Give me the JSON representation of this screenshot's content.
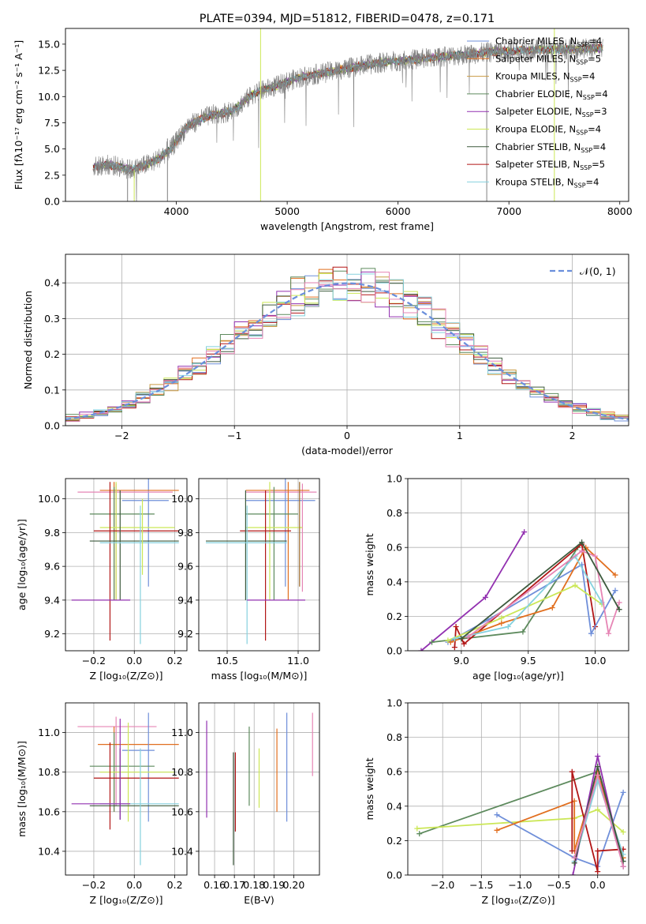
{
  "chart_data": [
    {
      "id": "spectrum",
      "type": "line",
      "title": "PLATE=0394, MJD=51812, FIBERID=0478, z=0.171",
      "xlabel": "wavelength [Angstrom, rest frame]",
      "ylabel": "Flux [fλ10⁻¹⁷ erg cm⁻² s⁻¹ A⁻¹]",
      "xlim": [
        3000,
        8080
      ],
      "ylim": [
        0,
        16.5
      ],
      "xticks": [
        4000,
        5000,
        6000,
        7000,
        8000
      ],
      "yticks": [
        0.0,
        2.5,
        5.0,
        7.5,
        10.0,
        12.5,
        15.0
      ],
      "grid": false,
      "legend_position": "top-right",
      "data_color": "#808080",
      "continuum_x": [
        3250,
        3400,
        3600,
        3800,
        3950,
        4100,
        4300,
        4500,
        4700,
        4900,
        5100,
        5300,
        5500,
        5700,
        5900,
        6100,
        6300,
        6500,
        6700,
        6900,
        7100,
        7300,
        7500,
        7700,
        7850
      ],
      "continuum_y": [
        3.3,
        3.5,
        3.0,
        3.8,
        5.0,
        7.2,
        8.2,
        8.6,
        10.3,
        11.0,
        11.8,
        12.2,
        12.6,
        13.0,
        13.3,
        13.5,
        13.7,
        13.9,
        14.1,
        14.3,
        14.4,
        14.5,
        14.5,
        14.6,
        14.6
      ],
      "series": [
        {
          "name": "Chabrier MILES, N",
          "sub": "SSP",
          "suffix": "=4",
          "color": "#6f8fd9"
        },
        {
          "name": "Salpeter MILES, N",
          "sub": "SSP",
          "suffix": "=5",
          "color": "#e16f1f"
        },
        {
          "name": "Kroupa MILES, N",
          "sub": "SSP",
          "suffix": "=4",
          "color": "#c99a43"
        },
        {
          "name": "Chabrier ELODIE, N",
          "sub": "SSP",
          "suffix": "=4",
          "color": "#5d8a5d"
        },
        {
          "name": "Salpeter ELODIE, N",
          "sub": "SSP",
          "suffix": "=3",
          "color": "#9230b0"
        },
        {
          "name": "Kroupa ELODIE, N",
          "sub": "SSP",
          "suffix": "=4",
          "color": "#cbe756"
        },
        {
          "name": "Chabrier STELIB, N",
          "sub": "SSP",
          "suffix": "=4",
          "color": "#3d5a3d"
        },
        {
          "name": "Salpeter STELIB, N",
          "sub": "SSP",
          "suffix": "=5",
          "color": "#b21616"
        },
        {
          "name": "Kroupa STELIB, N",
          "sub": "SSP",
          "suffix": "=4",
          "color": "#85d1de"
        }
      ]
    },
    {
      "id": "residuals",
      "type": "line",
      "xlabel": "(data-model)/error",
      "ylabel": "Normed distribution",
      "xlim": [
        -2.5,
        2.5
      ],
      "ylim": [
        0,
        0.48
      ],
      "xticks": [
        -2,
        -1,
        0,
        1,
        2
      ],
      "yticks": [
        0.0,
        0.1,
        0.2,
        0.3,
        0.4
      ],
      "grid": true,
      "legend_position": "top-right",
      "gauss_label": "𝒩(0, 1)",
      "gauss_color": "#6a8fdc",
      "hist_colors": [
        "#6f8fd9",
        "#e16f1f",
        "#c99a43",
        "#5d8a5d",
        "#9230b0",
        "#cbe756",
        "#3d5a3d",
        "#b21616",
        "#85d1de",
        "#e685b5"
      ]
    },
    {
      "id": "age-z",
      "type": "scatter",
      "xlabel": "Z [log₁₀(Z/Z⊙)]",
      "ylabel": "age  [log₁₀(age/yr)]",
      "xlim": [
        -0.34,
        0.26
      ],
      "ylim": [
        9.1,
        10.12
      ],
      "xticks": [
        -0.2,
        0.0,
        0.2
      ],
      "yticks": [
        9.2,
        9.4,
        9.6,
        9.8,
        10.0
      ],
      "grid": true,
      "points": [
        {
          "x": 0.07,
          "y": 9.99,
          "xlo": -0.06,
          "xhi": 0.17,
          "ylo": 9.48,
          "yhi": 10.12,
          "color": "#6f8fd9"
        },
        {
          "x": -0.09,
          "y": 10.04,
          "xlo": -0.28,
          "xhi": 0.19,
          "ylo": 9.4,
          "yhi": 10.09,
          "color": "#e685b5"
        },
        {
          "x": -0.1,
          "y": 10.05,
          "xlo": -0.17,
          "xhi": 0.22,
          "ylo": 9.4,
          "yhi": 10.1,
          "color": "#e16f1f"
        },
        {
          "x": -0.1,
          "y": 9.91,
          "xlo": -0.22,
          "xhi": 0.1,
          "ylo": 9.4,
          "yhi": 10.07,
          "color": "#5d8a5d"
        },
        {
          "x": -0.09,
          "y": 9.83,
          "xlo": -0.17,
          "xhi": 0.2,
          "ylo": 9.4,
          "yhi": 10.1,
          "color": "#cbe756"
        },
        {
          "x": -0.12,
          "y": 9.81,
          "xlo": -0.2,
          "xhi": 0.22,
          "ylo": 9.16,
          "yhi": 10.1,
          "color": "#b21616"
        },
        {
          "x": -0.07,
          "y": 9.75,
          "xlo": -0.22,
          "xhi": 0.22,
          "ylo": 9.4,
          "yhi": 10.05,
          "color": "#3d5a3d"
        },
        {
          "x": 0.03,
          "y": 9.74,
          "xlo": -0.17,
          "xhi": 0.22,
          "ylo": 9.14,
          "yhi": 9.96,
          "color": "#85d1de"
        },
        {
          "x": -0.07,
          "y": 9.4,
          "xlo": -0.31,
          "xhi": -0.02,
          "ylo": 9.4,
          "yhi": 9.4,
          "color": "#9230b0"
        },
        {
          "x": 0.04,
          "y": 9.83,
          "xlo": 0.04,
          "xhi": 0.04,
          "ylo": 9.55,
          "yhi": 10.0,
          "color": "#cbe756"
        }
      ]
    },
    {
      "id": "age-mass",
      "type": "scatter",
      "xlabel": "mass [log₁₀(M/M⊙)]",
      "ylabel": "",
      "xlim": [
        10.3,
        11.15
      ],
      "ylim": [
        9.1,
        10.12
      ],
      "xticks": [
        10.5,
        11.0
      ],
      "yticks": [
        9.2,
        9.4,
        9.6,
        9.8,
        10.0
      ],
      "grid": true,
      "points": [
        {
          "x": 10.91,
          "y": 9.99,
          "xlo": 10.63,
          "xhi": 11.12,
          "ylo": 9.48,
          "yhi": 10.12,
          "color": "#6f8fd9"
        },
        {
          "x": 11.03,
          "y": 10.04,
          "xlo": 10.63,
          "xhi": 11.13,
          "ylo": 9.45,
          "yhi": 10.09,
          "color": "#e685b5"
        },
        {
          "x": 10.93,
          "y": 10.05,
          "xlo": 10.63,
          "xhi": 11.08,
          "ylo": 9.4,
          "yhi": 10.1,
          "color": "#e16f1f"
        },
        {
          "x": 10.83,
          "y": 9.91,
          "xlo": 10.63,
          "xhi": 11.0,
          "ylo": 9.4,
          "yhi": 10.07,
          "color": "#5d8a5d"
        },
        {
          "x": 10.8,
          "y": 9.83,
          "xlo": 10.63,
          "xhi": 11.03,
          "ylo": 9.4,
          "yhi": 10.1,
          "color": "#cbe756"
        },
        {
          "x": 10.77,
          "y": 9.81,
          "xlo": 10.59,
          "xhi": 10.95,
          "ylo": 9.16,
          "yhi": 10.05,
          "color": "#b21616"
        },
        {
          "x": 10.63,
          "y": 9.75,
          "xlo": 10.35,
          "xhi": 10.92,
          "ylo": 9.4,
          "yhi": 10.05,
          "color": "#3d5a3d"
        },
        {
          "x": 10.64,
          "y": 9.74,
          "xlo": 10.35,
          "xhi": 10.92,
          "ylo": 9.14,
          "yhi": 9.96,
          "color": "#85d1de"
        },
        {
          "x": 10.64,
          "y": 9.4,
          "xlo": 10.64,
          "xhi": 11.05,
          "ylo": 9.4,
          "yhi": 9.4,
          "color": "#9230b0"
        },
        {
          "x": 11.01,
          "y": 9.8,
          "xlo": 11.01,
          "xhi": 11.01,
          "ylo": 9.48,
          "yhi": 10.1,
          "color": "#9e6a2a"
        }
      ]
    },
    {
      "id": "weight-age",
      "type": "line",
      "xlabel": "age  [log₁₀(age/yr)]",
      "ylabel": "mass weight",
      "xlim": [
        8.6,
        10.25
      ],
      "ylim": [
        0,
        1
      ],
      "xticks": [
        9.0,
        9.5,
        10.0
      ],
      "yticks": [
        0.0,
        0.2,
        0.4,
        0.6,
        0.8,
        1.0
      ],
      "grid": true,
      "series": [
        {
          "color": "#9230b0",
          "x": [
            8.7,
            9.18,
            9.47
          ],
          "y": [
            0.0,
            0.31,
            0.69
          ]
        },
        {
          "color": "#5d8a5d",
          "x": [
            8.78,
            9.46,
            9.87
          ],
          "y": [
            0.05,
            0.11,
            0.6
          ]
        },
        {
          "color": "#b21616",
          "x": [
            8.95,
            8.96,
            9.02,
            9.9,
            10.0
          ],
          "y": [
            0.02,
            0.14,
            0.04,
            0.62,
            0.14
          ]
        },
        {
          "color": "#6f8fd9",
          "x": [
            8.9,
            9.2,
            9.9,
            9.97,
            10.15
          ],
          "y": [
            0.05,
            0.18,
            0.5,
            0.1,
            0.35
          ]
        },
        {
          "color": "#e16f1f",
          "x": [
            8.92,
            9.3,
            9.68,
            9.93,
            10.15
          ],
          "y": [
            0.05,
            0.16,
            0.25,
            0.6,
            0.44
          ]
        },
        {
          "color": "#cbe756",
          "x": [
            8.9,
            9.3,
            9.85,
            10.05
          ],
          "y": [
            0.06,
            0.19,
            0.38,
            0.27
          ]
        },
        {
          "color": "#85d1de",
          "x": [
            8.95,
            9.35,
            9.85,
            10.05
          ],
          "y": [
            0.07,
            0.14,
            0.55,
            0.28
          ]
        },
        {
          "color": "#e685b5",
          "x": [
            9.05,
            9.9,
            10.0,
            10.1,
            10.18
          ],
          "y": [
            0.08,
            0.58,
            0.55,
            0.1,
            0.28
          ]
        },
        {
          "color": "#3d5a3d",
          "x": [
            9.0,
            9.9,
            10.18
          ],
          "y": [
            0.07,
            0.63,
            0.24
          ]
        }
      ]
    },
    {
      "id": "mass-z",
      "type": "scatter",
      "xlabel": "Z [log₁₀(Z/Z⊙)]",
      "ylabel": "mass [log₁₀(M/M⊙)]",
      "xlim": [
        -0.34,
        0.26
      ],
      "ylim": [
        10.28,
        11.15
      ],
      "xticks": [
        -0.2,
        0.0,
        0.2
      ],
      "yticks": [
        10.4,
        10.6,
        10.8,
        11.0
      ],
      "grid": true,
      "points": [
        {
          "x": -0.09,
          "y": 11.03,
          "xlo": -0.28,
          "xhi": 0.11,
          "ylo": 10.63,
          "yhi": 11.08,
          "color": "#e685b5"
        },
        {
          "x": -0.1,
          "y": 10.94,
          "xlo": -0.18,
          "xhi": 0.22,
          "ylo": 10.6,
          "yhi": 11.03,
          "color": "#e16f1f"
        },
        {
          "x": 0.07,
          "y": 10.91,
          "xlo": -0.06,
          "xhi": 0.1,
          "ylo": 10.55,
          "yhi": 11.1,
          "color": "#6f8fd9"
        },
        {
          "x": -0.1,
          "y": 10.83,
          "xlo": -0.22,
          "xhi": 0.1,
          "ylo": 10.6,
          "yhi": 11.0,
          "color": "#5d8a5d"
        },
        {
          "x": -0.03,
          "y": 10.8,
          "xlo": -0.17,
          "xhi": 0.2,
          "ylo": 10.55,
          "yhi": 11.05,
          "color": "#cbe756"
        },
        {
          "x": -0.12,
          "y": 10.77,
          "xlo": -0.2,
          "xhi": 0.22,
          "ylo": 10.51,
          "yhi": 10.95,
          "color": "#b21616"
        },
        {
          "x": -0.07,
          "y": 10.63,
          "xlo": -0.22,
          "xhi": 0.22,
          "ylo": 10.56,
          "yhi": 10.92,
          "color": "#3d5a3d"
        },
        {
          "x": 0.03,
          "y": 10.64,
          "xlo": -0.17,
          "xhi": 0.22,
          "ylo": 10.33,
          "yhi": 10.92,
          "color": "#85d1de"
        },
        {
          "x": -0.07,
          "y": 10.64,
          "xlo": -0.31,
          "xhi": -0.02,
          "ylo": 10.56,
          "yhi": 11.07,
          "color": "#9230b0"
        }
      ]
    },
    {
      "id": "mass-ebv",
      "type": "scatter",
      "xlabel": "E(B-V)",
      "ylabel": "",
      "xlim": [
        0.152,
        0.213
      ],
      "ylim": [
        10.28,
        11.15
      ],
      "xticks": [
        0.16,
        0.17,
        0.18,
        0.19,
        0.2
      ],
      "yticks": [
        10.4,
        10.6,
        10.8,
        11.0
      ],
      "grid": true,
      "bars": [
        {
          "x": 0.156,
          "ylo": 10.57,
          "yhi": 11.06,
          "color": "#9230b0"
        },
        {
          "x": 0.1695,
          "ylo": 10.33,
          "yhi": 10.9,
          "color": "#3d5a3d"
        },
        {
          "x": 0.1705,
          "ylo": 10.5,
          "yhi": 10.87,
          "color": "#85d1de"
        },
        {
          "x": 0.1705,
          "ylo": 10.5,
          "yhi": 10.9,
          "color": "#b21616"
        },
        {
          "x": 0.1775,
          "ylo": 10.63,
          "yhi": 11.03,
          "color": "#5d8a5d"
        },
        {
          "x": 0.1825,
          "ylo": 10.62,
          "yhi": 10.92,
          "color": "#cbe756"
        },
        {
          "x": 0.1915,
          "ylo": 10.6,
          "yhi": 11.02,
          "color": "#e16f1f"
        },
        {
          "x": 0.1965,
          "ylo": 10.55,
          "yhi": 11.1,
          "color": "#6f8fd9"
        },
        {
          "x": 0.2095,
          "ylo": 10.78,
          "yhi": 11.1,
          "color": "#e685b5"
        }
      ]
    },
    {
      "id": "weight-z",
      "type": "line",
      "xlabel": "Z [log₁₀(Z/Z⊙)]",
      "ylabel": "mass weight",
      "xlim": [
        -2.45,
        0.4
      ],
      "ylim": [
        0,
        1
      ],
      "xticks": [
        -2.0,
        -1.5,
        -1.0,
        -0.5,
        0.0
      ],
      "yticks": [
        0.0,
        0.2,
        0.4,
        0.6,
        0.8,
        1.0
      ],
      "grid": true,
      "series": [
        {
          "color": "#5d8a5d",
          "x": [
            -2.3,
            0.0,
            0.33
          ],
          "y": [
            0.24,
            0.6,
            0.05
          ]
        },
        {
          "color": "#cbe756",
          "x": [
            -2.33,
            -0.3,
            0.0,
            0.33
          ],
          "y": [
            0.27,
            0.33,
            0.38,
            0.25
          ]
        },
        {
          "color": "#6f8fd9",
          "x": [
            -1.3,
            -0.3,
            0.0,
            0.33
          ],
          "y": [
            0.35,
            0.1,
            0.05,
            0.48
          ]
        },
        {
          "color": "#e16f1f",
          "x": [
            -1.3,
            -0.3,
            -0.3,
            0.0,
            0.33
          ],
          "y": [
            0.26,
            0.43,
            0.14,
            0.6,
            0.1
          ]
        },
        {
          "color": "#b21616",
          "x": [
            -0.33,
            -0.33,
            0.0,
            0.0,
            0.33
          ],
          "y": [
            0.14,
            0.6,
            0.02,
            0.14,
            0.15
          ]
        },
        {
          "color": "#9230b0",
          "x": [
            -0.32,
            0.0,
            0.33
          ],
          "y": [
            0.0,
            0.69,
            0.05
          ]
        },
        {
          "color": "#85d1de",
          "x": [
            -0.3,
            0.0,
            0.33
          ],
          "y": [
            0.08,
            0.55,
            0.12
          ]
        },
        {
          "color": "#3d5a3d",
          "x": [
            -0.3,
            0.0,
            0.33
          ],
          "y": [
            0.07,
            0.63,
            0.08
          ]
        },
        {
          "color": "#e685b5",
          "x": [
            -0.3,
            0.0,
            0.33
          ],
          "y": [
            0.1,
            0.58,
            0.05
          ]
        }
      ]
    }
  ]
}
